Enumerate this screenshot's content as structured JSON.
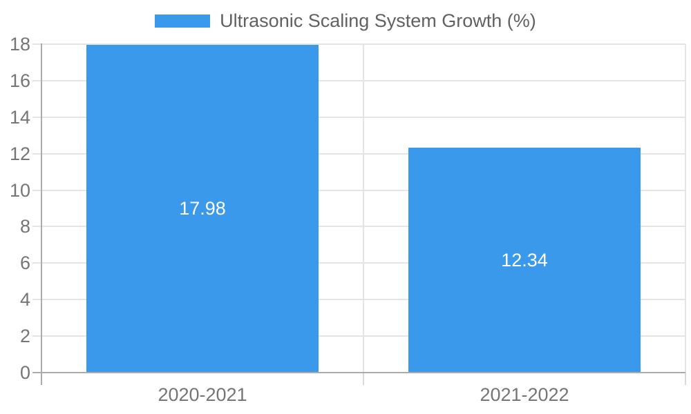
{
  "chart_data": {
    "type": "bar",
    "title": "",
    "categories": [
      "2020-2021",
      "2021-2022"
    ],
    "series": [
      {
        "name": "Ultrasonic Scaling System Growth (%)",
        "values": [
          17.98,
          12.34
        ]
      }
    ],
    "value_labels": [
      "17.98",
      "12.34"
    ],
    "xlabel": "",
    "ylabel": "",
    "ylim": [
      0,
      18
    ],
    "yticks": [
      0,
      2,
      4,
      6,
      8,
      10,
      12,
      14,
      16,
      18
    ],
    "grid": true,
    "legend_position": "top-center",
    "colors": {
      "bar": "#3B99EC",
      "grid": "#e4e4e4",
      "axis": "#ababab",
      "axis_tick": "#d9d9d9",
      "tick_text": "#757575",
      "legend_text": "#616161",
      "data_label": "#ffffff",
      "background": "#ffffff"
    }
  }
}
